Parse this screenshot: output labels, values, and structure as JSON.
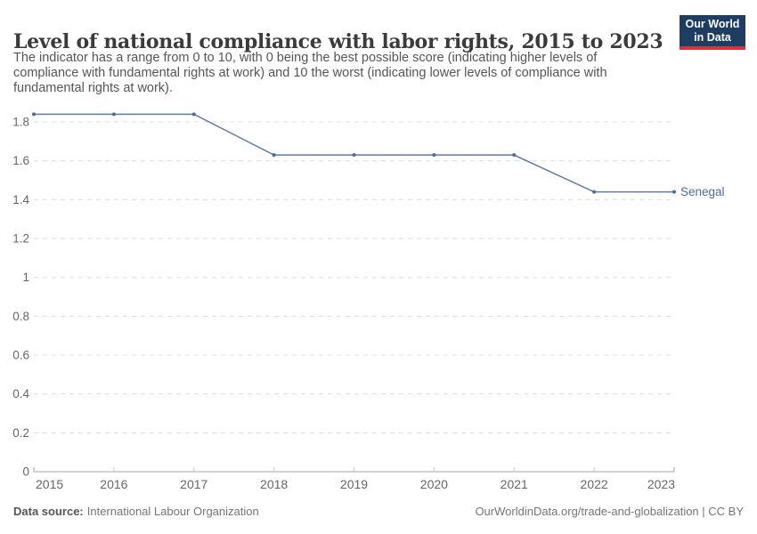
{
  "header": {
    "title": "Level of national compliance with labor rights, 2015 to 2023",
    "subtitle_lines": [
      "The indicator has a range from 0 to 10, with 0 being the best possible score (indicating higher levels of",
      "compliance with fundamental rights at work) and 10 the worst (indicating lower levels of compliance with",
      "fundamental rights at work)."
    ],
    "logo": {
      "line1": "Our World",
      "line2": "in Data"
    }
  },
  "chart_data": {
    "type": "line",
    "title": "Level of national compliance with labor rights, 2015 to 2023",
    "x": [
      2015,
      2016,
      2017,
      2018,
      2019,
      2020,
      2021,
      2022,
      2023
    ],
    "series": [
      {
        "name": "Senegal",
        "color": "#4c6a9c",
        "values": [
          1.84,
          1.84,
          1.84,
          1.63,
          1.63,
          1.63,
          1.63,
          1.44,
          1.44
        ]
      }
    ],
    "xlabel": "",
    "ylabel": "",
    "ylim": [
      0,
      1.9
    ],
    "yticks": [
      {
        "value": 0,
        "label": "0"
      },
      {
        "value": 0.2,
        "label": "0.2"
      },
      {
        "value": 0.4,
        "label": "0.4"
      },
      {
        "value": 0.6,
        "label": "0.6"
      },
      {
        "value": 0.8,
        "label": "0.8"
      },
      {
        "value": 1,
        "label": "1"
      },
      {
        "value": 1.2,
        "label": "1.2"
      },
      {
        "value": 1.4,
        "label": "1.4"
      },
      {
        "value": 1.6,
        "label": "1.6"
      },
      {
        "value": 1.8,
        "label": "1.8"
      }
    ],
    "grid": "horizontal-dashed",
    "legend_position": "end-of-line-label"
  },
  "colors": {
    "line": "#5e79ab",
    "marker": "#4c6a9c",
    "grid": "#dcdcdc",
    "axis": "#a5a5a5",
    "tick": "#c8c8c8",
    "axis_text": "#666666",
    "title_text": "#3b3b3b",
    "subtitle_text": "#555555",
    "footer_text": "#757575",
    "logo_bg": "#1d3d63",
    "logo_accent": "#d8323c"
  },
  "footer": {
    "datasource_label": "Data source:",
    "datasource_value": "International Labour Organization",
    "credit": "OurWorldinData.org/trade-and-globalization | CC BY"
  }
}
